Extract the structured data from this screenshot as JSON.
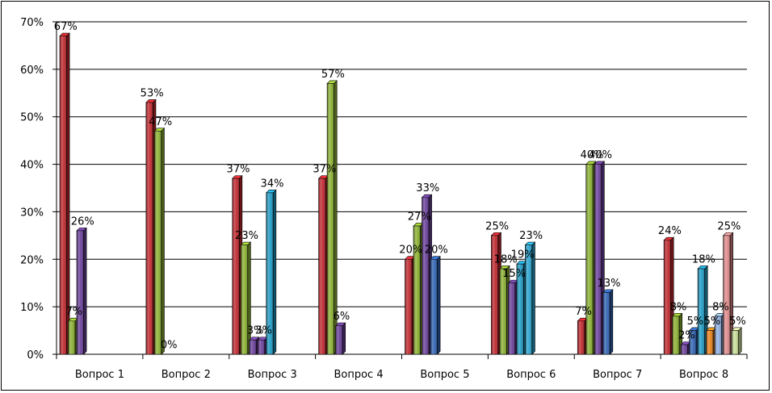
{
  "chart_data": {
    "type": "bar",
    "categories": [
      "Вопрос 1",
      "Вопрос 2",
      "Вопрос 3",
      "Вопрос 4",
      "Вопрос 5",
      "Вопрос 6",
      "Вопрос 7",
      "Вопрос 8"
    ],
    "ylim": [
      0,
      70
    ],
    "y_ticks": [
      "0%",
      "10%",
      "20%",
      "30%",
      "40%",
      "50%",
      "60%",
      "70%"
    ],
    "grid": true,
    "legend": "none",
    "groups": [
      {
        "category": "Вопрос 1",
        "bars": [
          {
            "value": 67,
            "label": "67%",
            "color": "#c0272d"
          },
          {
            "value": 7,
            "label": "7%",
            "color": "#8ab030"
          },
          {
            "value": 26,
            "label": "26%",
            "color": "#6a3f9a"
          }
        ]
      },
      {
        "category": "Вопрос 2",
        "bars": [
          {
            "value": 53,
            "label": "53%",
            "color": "#c0272d"
          },
          {
            "value": 47,
            "label": "47%",
            "color": "#8ab030"
          },
          {
            "value": 0,
            "label": "0%",
            "color": "#6a3f9a"
          }
        ]
      },
      {
        "category": "Вопрос 3",
        "bars": [
          {
            "value": 37,
            "label": "37%",
            "color": "#c0272d"
          },
          {
            "value": 23,
            "label": "23%",
            "color": "#8ab030"
          },
          {
            "value": 3,
            "label": "3%",
            "color": "#6a3f9a"
          },
          {
            "value": 3,
            "label": "3%",
            "color": "#6a3f9a"
          },
          {
            "value": 34,
            "label": "34%",
            "color": "#1f9bc4"
          }
        ]
      },
      {
        "category": "Вопрос 4",
        "bars": [
          {
            "value": 37,
            "label": "37%",
            "color": "#c0272d"
          },
          {
            "value": 57,
            "label": "57%",
            "color": "#8ab030"
          },
          {
            "value": 6,
            "label": "6%",
            "color": "#6a3f9a"
          }
        ]
      },
      {
        "category": "Вопрос 5",
        "bars": [
          {
            "value": 20,
            "label": "20%",
            "color": "#c0272d"
          },
          {
            "value": 27,
            "label": "27%",
            "color": "#8ab030"
          },
          {
            "value": 33,
            "label": "33%",
            "color": "#6a3f9a"
          },
          {
            "value": 20,
            "label": "20%",
            "color": "#2f62b3"
          }
        ]
      },
      {
        "category": "Вопрос 6",
        "bars": [
          {
            "value": 25,
            "label": "25%",
            "color": "#c0272d"
          },
          {
            "value": 18,
            "label": "18%",
            "color": "#8ab030"
          },
          {
            "value": 15,
            "label": "15%",
            "color": "#6a3f9a"
          },
          {
            "value": 19,
            "label": "19%",
            "color": "#1f9bc4"
          },
          {
            "value": 23,
            "label": "23%",
            "color": "#29a3cf"
          }
        ]
      },
      {
        "category": "Вопрос 7",
        "bars": [
          {
            "value": 7,
            "label": "7%",
            "color": "#c0272d"
          },
          {
            "value": 40,
            "label": "40%",
            "color": "#8ab030"
          },
          {
            "value": 40,
            "label": "40%",
            "color": "#6a3f9a"
          },
          {
            "value": 13,
            "label": "13%",
            "color": "#2f62b3"
          }
        ]
      },
      {
        "category": "Вопрос 8",
        "bars": [
          {
            "value": 24,
            "label": "24%",
            "color": "#c0272d"
          },
          {
            "value": 8,
            "label": "8%",
            "color": "#8ab030"
          },
          {
            "value": 2,
            "label": "2%",
            "color": "#6a3f9a"
          },
          {
            "value": 5,
            "label": "5%",
            "color": "#2f62b3"
          },
          {
            "value": 18,
            "label": "18%",
            "color": "#1f9bc4"
          },
          {
            "value": 5,
            "label": "5%",
            "color": "#e8821e"
          },
          {
            "value": 8,
            "label": "8%",
            "color": "#8eaee0"
          },
          {
            "value": 25,
            "label": "25%",
            "color": "#e08a8a"
          },
          {
            "value": 5,
            "label": "5%",
            "color": "#c7dd97"
          }
        ]
      }
    ]
  }
}
